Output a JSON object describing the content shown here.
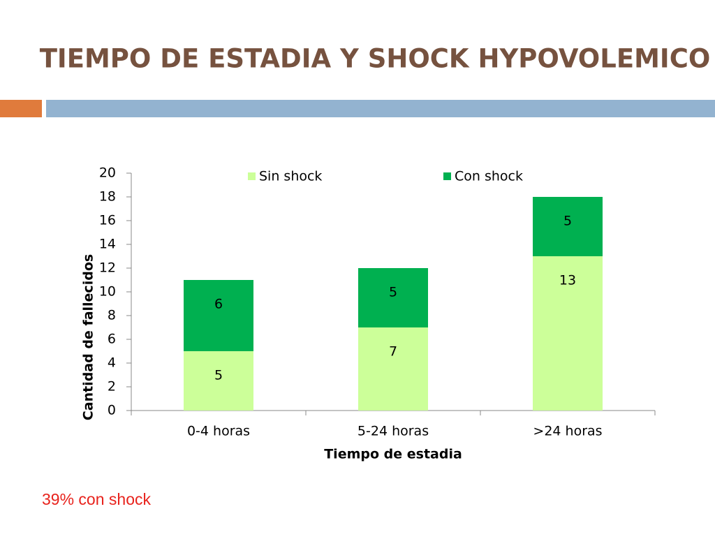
{
  "slide_title": "TIEMPO DE ESTADIA Y SHOCK HYPOVOLEMICO",
  "annotation": "39% con shock",
  "chart_data": {
    "type": "stacked_bar",
    "x_label": "Tiempo de estadia",
    "y_label": "Cantidad de fallecidos",
    "categories": [
      "0-4 horas",
      "5-24 horas",
      ">24 horas"
    ],
    "series": [
      {
        "name": "Sin shock",
        "color": "#ccff99",
        "values": [
          5,
          7,
          13
        ]
      },
      {
        "name": "Con shock",
        "color": "#00b050",
        "values": [
          6,
          5,
          5
        ]
      }
    ],
    "ylim": [
      0,
      20
    ],
    "yticks": [
      0,
      2,
      4,
      6,
      8,
      10,
      12,
      14,
      16,
      18,
      20
    ],
    "legend": "top"
  }
}
